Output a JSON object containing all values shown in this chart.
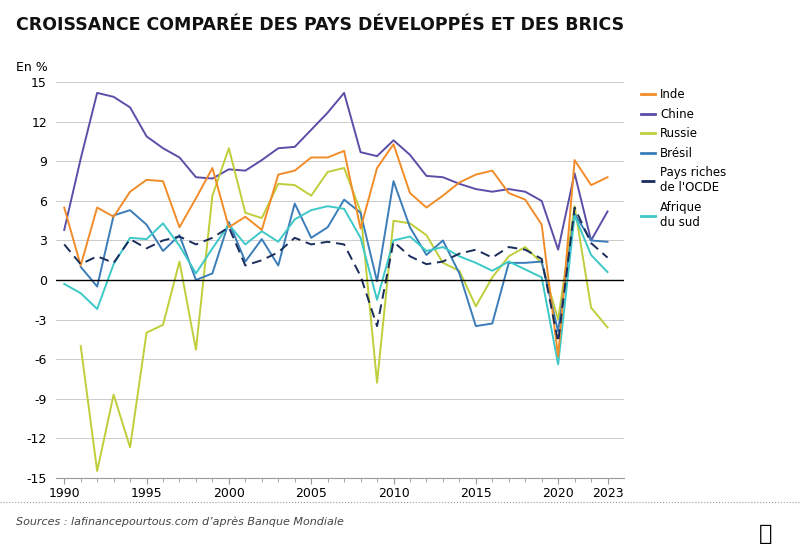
{
  "title": "CROISSANCE COMPARÉE DES PAYS DÉVELOPPÉS ET DES BRICS",
  "ylabel": "En %",
  "source": "Sources : lafinancepourtous.com d’après Banque Mondiale",
  "years": [
    1990,
    1991,
    1992,
    1993,
    1994,
    1995,
    1996,
    1997,
    1998,
    1999,
    2000,
    2001,
    2002,
    2003,
    2004,
    2005,
    2006,
    2007,
    2008,
    2009,
    2010,
    2011,
    2012,
    2013,
    2014,
    2015,
    2016,
    2017,
    2018,
    2019,
    2020,
    2021,
    2022,
    2023
  ],
  "inde": [
    5.5,
    1.1,
    5.5,
    4.8,
    6.7,
    7.6,
    7.5,
    4.0,
    6.2,
    8.5,
    4.0,
    4.8,
    3.8,
    8.0,
    8.3,
    9.3,
    9.3,
    9.8,
    3.9,
    8.5,
    10.3,
    6.6,
    5.5,
    6.4,
    7.4,
    8.0,
    8.3,
    6.6,
    6.1,
    4.2,
    -5.8,
    9.1,
    7.2,
    7.8
  ],
  "chine": [
    3.8,
    9.2,
    14.2,
    13.9,
    13.1,
    10.9,
    10.0,
    9.3,
    7.8,
    7.7,
    8.4,
    8.3,
    9.1,
    10.0,
    10.1,
    11.4,
    12.7,
    14.2,
    9.7,
    9.4,
    10.6,
    9.5,
    7.9,
    7.8,
    7.3,
    6.9,
    6.7,
    6.9,
    6.7,
    6.0,
    2.3,
    8.1,
    3.0,
    5.2
  ],
  "russie": [
    null,
    -5.0,
    -14.5,
    -8.7,
    -12.7,
    -4.0,
    -3.4,
    1.4,
    -5.3,
    6.4,
    10.0,
    5.1,
    4.7,
    7.3,
    7.2,
    6.4,
    8.2,
    8.5,
    5.2,
    -7.8,
    4.5,
    4.3,
    3.4,
    1.3,
    0.7,
    -2.0,
    0.2,
    1.8,
    2.5,
    1.3,
    -3.0,
    5.6,
    -2.1,
    -3.6
  ],
  "bresil": [
    null,
    1.0,
    -0.5,
    4.9,
    5.3,
    4.2,
    2.2,
    3.4,
    0.0,
    0.5,
    4.4,
    1.4,
    3.1,
    1.1,
    5.8,
    3.2,
    4.0,
    6.1,
    5.1,
    -0.1,
    7.5,
    4.0,
    1.9,
    3.0,
    0.5,
    -3.5,
    -3.3,
    1.3,
    1.3,
    1.4,
    -3.9,
    5.0,
    3.0,
    2.9
  ],
  "ocde": [
    2.7,
    1.2,
    1.8,
    1.3,
    3.1,
    2.4,
    3.0,
    3.3,
    2.7,
    3.2,
    4.0,
    1.1,
    1.5,
    2.1,
    3.2,
    2.7,
    2.9,
    2.7,
    0.3,
    -3.5,
    2.9,
    1.8,
    1.2,
    1.4,
    2.0,
    2.3,
    1.7,
    2.5,
    2.3,
    1.6,
    -4.7,
    5.5,
    2.8,
    1.7
  ],
  "afrique_sud": [
    -0.3,
    -1.0,
    -2.2,
    1.2,
    3.2,
    3.1,
    4.3,
    2.6,
    0.5,
    2.4,
    4.2,
    2.7,
    3.7,
    2.9,
    4.6,
    5.3,
    5.6,
    5.4,
    3.2,
    -1.5,
    3.0,
    3.3,
    2.2,
    2.5,
    1.8,
    1.3,
    0.7,
    1.4,
    0.8,
    0.2,
    -6.4,
    4.9,
    1.9,
    0.6
  ],
  "colors": {
    "inde": "#F28C28",
    "chine": "#5B4EA8",
    "russie": "#BFCE3A",
    "bresil": "#3B7DB8",
    "ocde": "#1A2C5B",
    "afrique_sud": "#3DC8C8"
  },
  "ylim": [
    -15,
    15
  ],
  "yticks": [
    -15,
    -12,
    -9,
    -6,
    -3,
    0,
    3,
    6,
    9,
    12,
    15
  ],
  "xticks": [
    1990,
    1995,
    2000,
    2005,
    2010,
    2015,
    2020,
    2023
  ],
  "background_color": "#FFFFFF"
}
